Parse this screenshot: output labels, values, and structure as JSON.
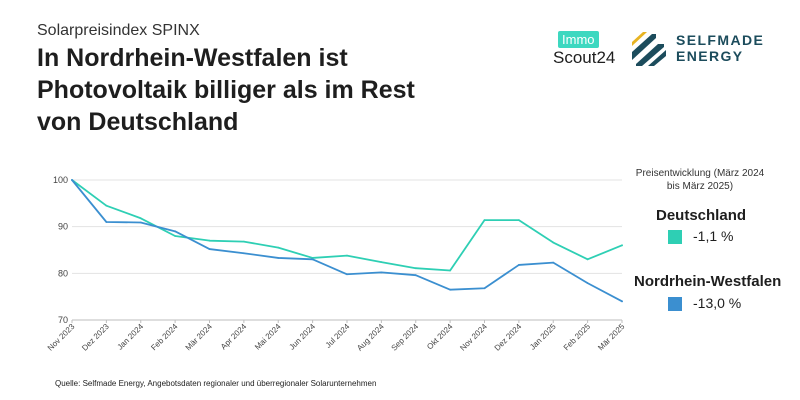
{
  "header": {
    "kicker": "Solarpreisindex SPINX",
    "headline": "In Nordrhein-Westfalen ist Photovoltaik billiger als im Rest von Deutschland"
  },
  "logos": {
    "immo_badge": "Immo",
    "immo_text": "Scout24",
    "selfmade_line1": "SELFMADE",
    "selfmade_line2": "ENERGY"
  },
  "panel": {
    "title": "Preisentwicklung (März 2024 bis März 2025)",
    "entries": [
      {
        "name": "Deutschland",
        "value": "-1,1 %",
        "color": "#2ecfb4"
      },
      {
        "name": "Nordrhein-Westfalen",
        "value": "-13,0 %",
        "color": "#3b8fd0"
      }
    ]
  },
  "source": "Quelle: Selfmade Energy, Angebotsdaten regionaler und überregionaler Solarunternehmen",
  "chart_data": {
    "type": "line",
    "title": "",
    "xlabel": "",
    "ylabel": "",
    "ylim": [
      70,
      100
    ],
    "yticks": [
      70,
      80,
      90,
      100
    ],
    "grid": true,
    "categories": [
      "Nov 2023",
      "Dez 2023",
      "Jan 2024",
      "Feb 2024",
      "Mär 2024",
      "Apr 2024",
      "Mai 2024",
      "Jun 2024",
      "Jul 2024",
      "Aug 2024",
      "Sep 2024",
      "Okt 2024",
      "Nov 2024",
      "Dez 2024",
      "Jan 2025",
      "Feb 2025",
      "Mär 2025"
    ],
    "series": [
      {
        "name": "Deutschland",
        "color": "#2ecfb4",
        "values": [
          100,
          94.5,
          91.8,
          88,
          87,
          86.8,
          85.5,
          83.3,
          83.8,
          82.4,
          81.1,
          80.6,
          91.4,
          91.4,
          86.6,
          83,
          86
        ]
      },
      {
        "name": "Nordrhein-Westfalen",
        "color": "#3b8fd0",
        "values": [
          100,
          91,
          90.9,
          89,
          85.2,
          84.3,
          83.3,
          83,
          79.8,
          80.2,
          79.6,
          76.5,
          76.8,
          81.8,
          82.3,
          77.9,
          74
        ]
      }
    ]
  }
}
